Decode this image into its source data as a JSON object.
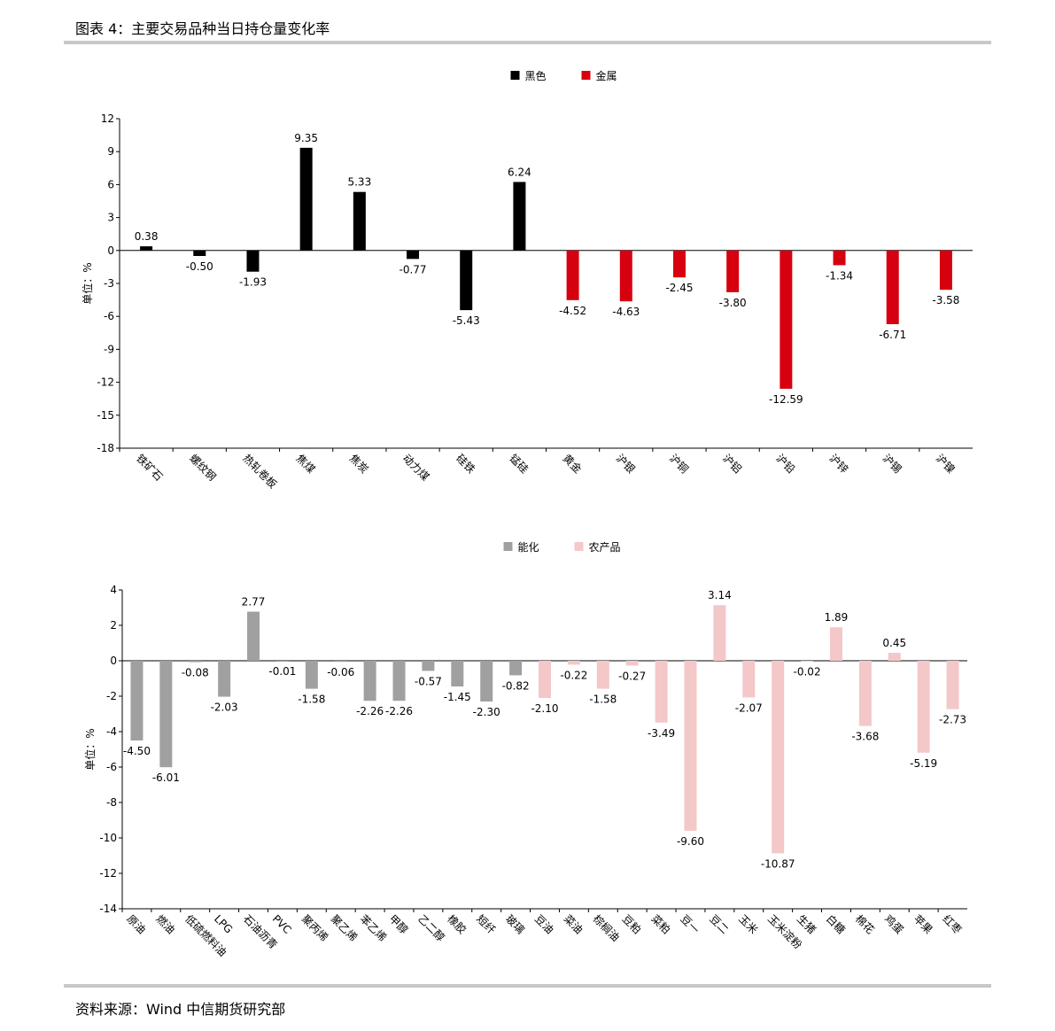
{
  "header": {
    "title": "图表 4：主要交易品种当日持仓量变化率"
  },
  "source": "资料来源：Wind 中信期货研究部",
  "chart_data": [
    {
      "type": "bar",
      "ylabel": "单位：%",
      "categories": [
        "铁矿石",
        "螺纹钢",
        "热轧卷板",
        "焦煤",
        "焦炭",
        "动力煤",
        "硅铁",
        "锰硅",
        "黄金",
        "沪银",
        "沪铜",
        "沪铝",
        "沪铅",
        "沪锌",
        "沪锡",
        "沪镍"
      ],
      "series": [
        {
          "name": "黑色",
          "color": "#000000",
          "values": [
            0.38,
            -0.5,
            -1.93,
            9.35,
            5.33,
            -0.77,
            -5.43,
            6.24,
            null,
            null,
            null,
            null,
            null,
            null,
            null,
            null
          ],
          "value_labels": [
            "0.38",
            "-0.50",
            "-1.93",
            "9.35",
            "5.33",
            "-0.77",
            "-5.43",
            "6.24",
            null,
            null,
            null,
            null,
            null,
            null,
            null,
            null
          ]
        },
        {
          "name": "金属",
          "color": "#d7000f",
          "values": [
            null,
            null,
            null,
            null,
            null,
            null,
            null,
            null,
            -4.52,
            -4.63,
            -2.45,
            -3.8,
            -12.59,
            -1.34,
            -6.71,
            -3.58
          ],
          "value_labels": [
            null,
            null,
            null,
            null,
            null,
            null,
            null,
            null,
            "-4.52",
            "-4.63",
            "-2.45",
            "-3.80",
            "-12.59",
            "-1.34",
            "-6.71",
            "-3.58"
          ]
        }
      ],
      "ylim": [
        -18,
        12
      ],
      "yticks": [
        -18,
        -15,
        -12,
        -9,
        -6,
        -3,
        0,
        3,
        6,
        9,
        12
      ],
      "legend": "top"
    },
    {
      "type": "bar",
      "ylabel": "单位：%",
      "categories": [
        "原油",
        "燃油",
        "低硫燃料油",
        "LPG",
        "石油沥青",
        "PVC",
        "聚丙烯",
        "聚乙烯",
        "苯乙烯",
        "甲醇",
        "乙二醇",
        "橡胶",
        "短纤",
        "玻璃",
        "豆油",
        "菜油",
        "棕榈油",
        "豆粕",
        "菜粕",
        "豆一",
        "豆二",
        "玉米",
        "玉米淀粉",
        "生猪",
        "白糖",
        "棉花",
        "鸡蛋",
        "苹果",
        "红枣"
      ],
      "series": [
        {
          "name": "能化",
          "color": "#a0a0a0",
          "values": [
            -4.5,
            -6.01,
            -0.08,
            -2.03,
            2.77,
            -0.01,
            -1.58,
            -0.06,
            -2.26,
            -2.26,
            -0.57,
            -1.45,
            -2.3,
            -0.82,
            null,
            null,
            null,
            null,
            null,
            null,
            null,
            null,
            null,
            null,
            null,
            null,
            null,
            null,
            null
          ],
          "value_labels": [
            "-4.50",
            "-6.01",
            "-0.08",
            "-2.03",
            "2.77",
            "-0.01",
            "-1.58",
            "-0.06",
            "-2.26",
            "-2.26",
            "-0.57",
            "-1.45",
            "-2.30",
            "-0.82",
            null,
            null,
            null,
            null,
            null,
            null,
            null,
            null,
            null,
            null,
            null,
            null,
            null,
            null,
            null
          ]
        },
        {
          "name": "农产品",
          "color": "#f4c7c9",
          "values": [
            null,
            null,
            null,
            null,
            null,
            null,
            null,
            null,
            null,
            null,
            null,
            null,
            null,
            null,
            -2.1,
            -0.22,
            -1.58,
            -0.27,
            -3.49,
            -9.6,
            3.14,
            -2.07,
            -10.87,
            -0.02,
            1.89,
            -3.68,
            0.45,
            -5.19,
            -2.73
          ],
          "value_labels": [
            null,
            null,
            null,
            null,
            null,
            null,
            null,
            null,
            null,
            null,
            null,
            null,
            null,
            null,
            "-2.10",
            "-0.22",
            "-1.58",
            "-0.27",
            "-3.49",
            "-9.60",
            "3.14",
            "-2.07",
            "-10.87",
            "-0.02",
            "1.89",
            "-3.68",
            "0.45",
            "-5.19",
            "-2.73"
          ]
        }
      ],
      "ylim": [
        -14,
        4
      ],
      "yticks": [
        -14,
        -12,
        -10,
        -8,
        -6,
        -4,
        -2,
        0,
        2,
        4
      ],
      "legend": "top"
    }
  ]
}
